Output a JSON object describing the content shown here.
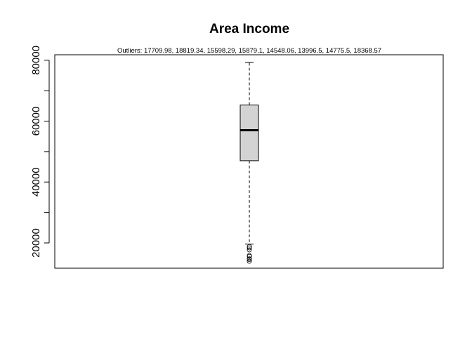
{
  "chart_data": {
    "type": "boxplot",
    "title": "Area Income",
    "subtitle": "Outliers:  17709.98, 18819.34, 15598.29, 15879.1, 14548.06, 13996.5, 14775.5, 18368.57",
    "xlabel": "",
    "ylabel": "",
    "ylim": [
      11700,
      81800
    ],
    "yticks": [
      20000,
      40000,
      60000,
      80000
    ],
    "ytick_labels": [
      "20000",
      "40000",
      "60000",
      "80000"
    ],
    "grid": false,
    "box": {
      "whisker_low": 19600,
      "q1": 47000,
      "median": 57000,
      "q3": 65300,
      "whisker_high": 79300
    },
    "outliers": [
      17709.98,
      18819.34,
      15598.29,
      15879.1,
      14548.06,
      13996.5,
      14775.5,
      18368.57
    ],
    "colors": {
      "box_fill": "#d3d3d3",
      "stroke": "#000000"
    }
  }
}
